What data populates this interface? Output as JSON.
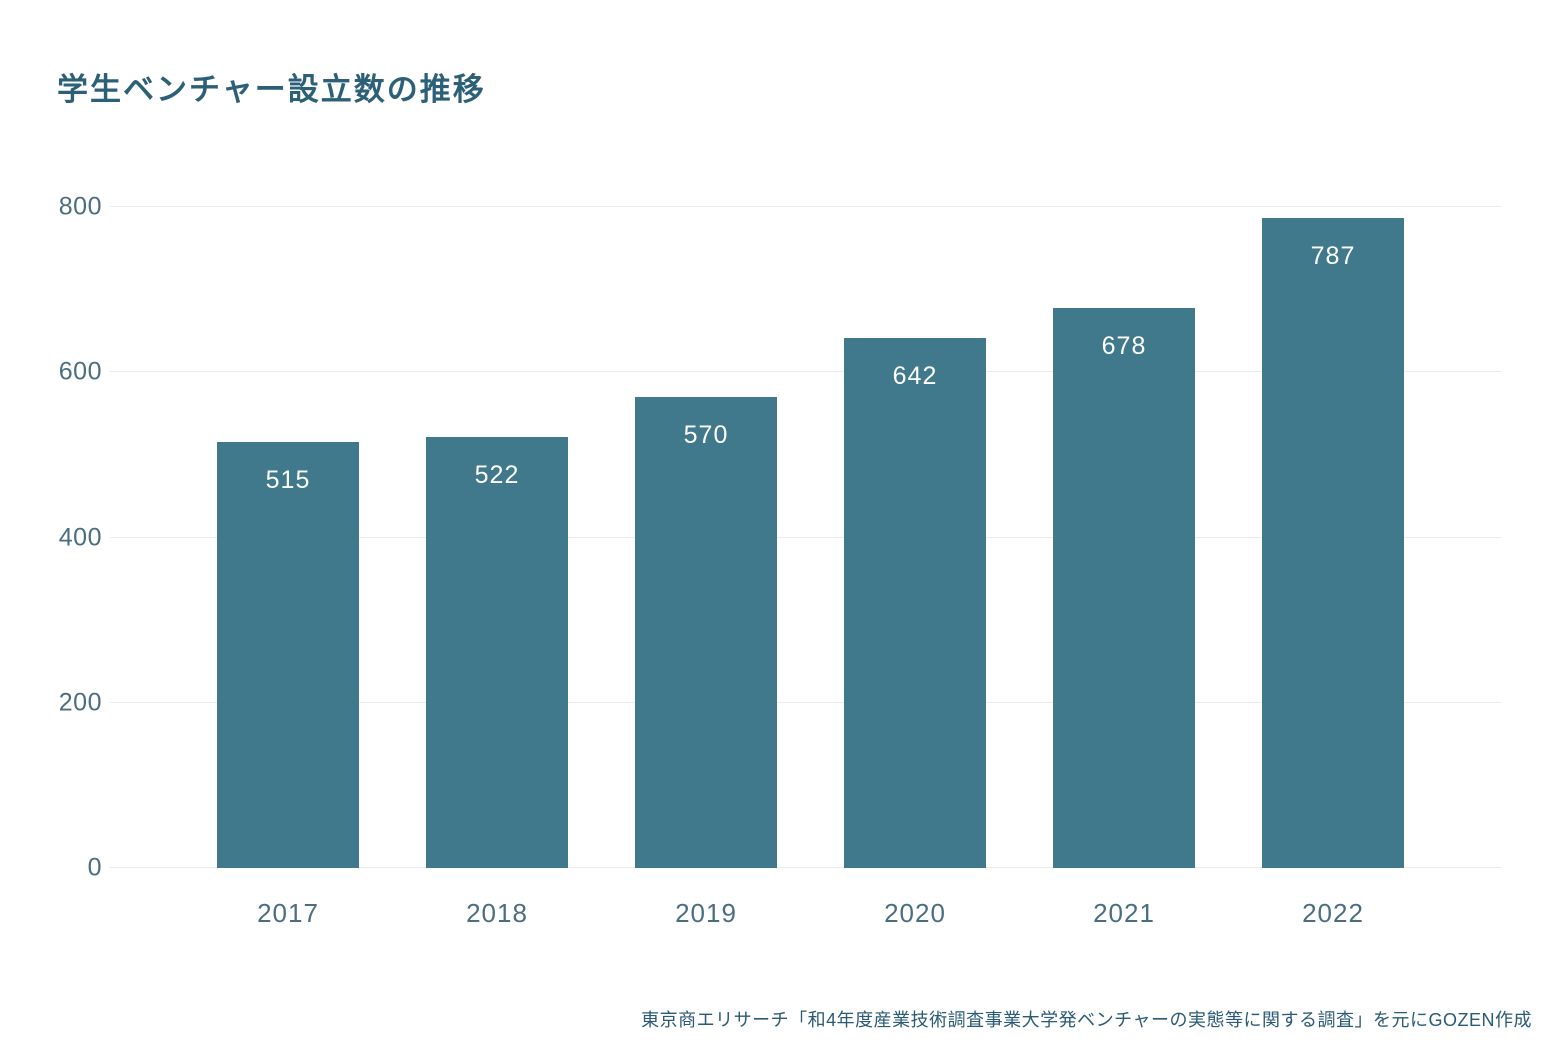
{
  "header": {
    "title": "学生ベンチャー設立数の推移"
  },
  "footer": {
    "source_note": "東京商エリサーチ「和4年度産業技術調査事業大学発ベンチャーの実態等に関する調査」を元にGOZEN作成"
  },
  "colors": {
    "background": "#ffffff",
    "bar": "#40798c",
    "title": "#2c5f78",
    "axis_label": "#4a6e80",
    "gridline": "#ececee",
    "value_label": "#ffffff",
    "footer": "#2a5a74"
  },
  "chart_data": {
    "type": "bar",
    "title": "学生ベンチャー設立数の推移",
    "categories": [
      "2017",
      "2018",
      "2019",
      "2020",
      "2021",
      "2022"
    ],
    "values": [
      515,
      522,
      570,
      642,
      678,
      787
    ],
    "xlabel": "",
    "ylabel": "",
    "ylim": [
      0,
      800
    ],
    "yticks": [
      0,
      200,
      400,
      600,
      800
    ],
    "grid": true,
    "legend_position": "none",
    "value_labels_inside_bars": true,
    "source_note": "東京商エリサーチ「和4年度産業技術調査事業大学発ベンチャーの実態等に関する調査」を元にGOZEN作成"
  }
}
